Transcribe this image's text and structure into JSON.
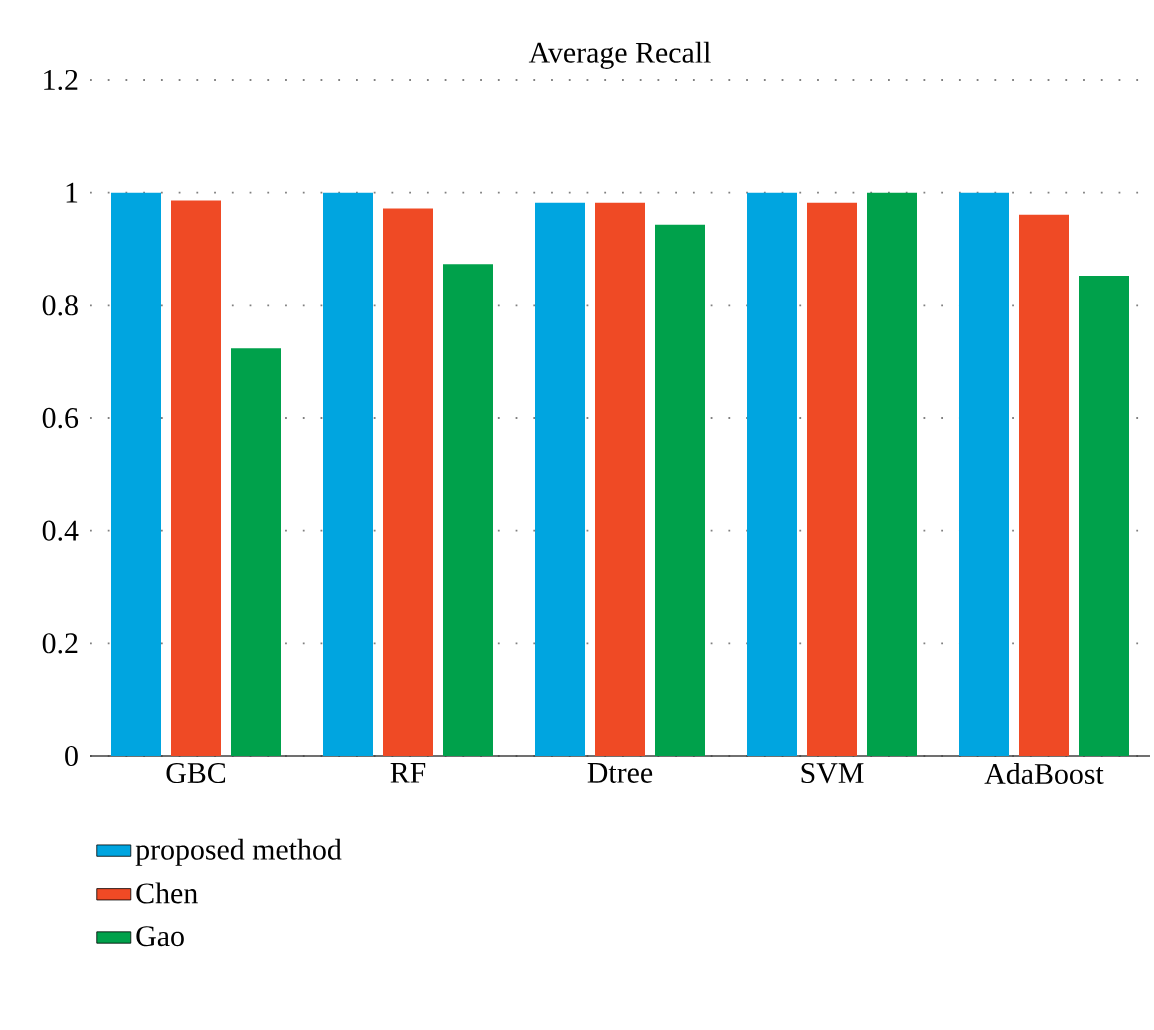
{
  "chart_data": {
    "type": "bar",
    "title": "Average Recall",
    "categories": [
      "GBC",
      "RF",
      "Dtree",
      "SVM",
      "AdaBoost"
    ],
    "series": [
      {
        "name": "proposed method",
        "color": "#00a5e0",
        "values": [
          1.0,
          1.0,
          0.982,
          1.0,
          1.0
        ]
      },
      {
        "name": "Chen",
        "color": "#ef4a25",
        "values": [
          0.986,
          0.972,
          0.982,
          0.982,
          0.961
        ]
      },
      {
        "name": "Gao",
        "color": "#00a14b",
        "values": [
          0.724,
          0.873,
          0.943,
          1.0,
          0.852
        ]
      }
    ],
    "ylim": [
      0,
      1.2
    ],
    "yticks": [
      0,
      0.2,
      0.4,
      0.6,
      0.8,
      1,
      1.2
    ],
    "grid": "y",
    "legend": "bottom left"
  }
}
